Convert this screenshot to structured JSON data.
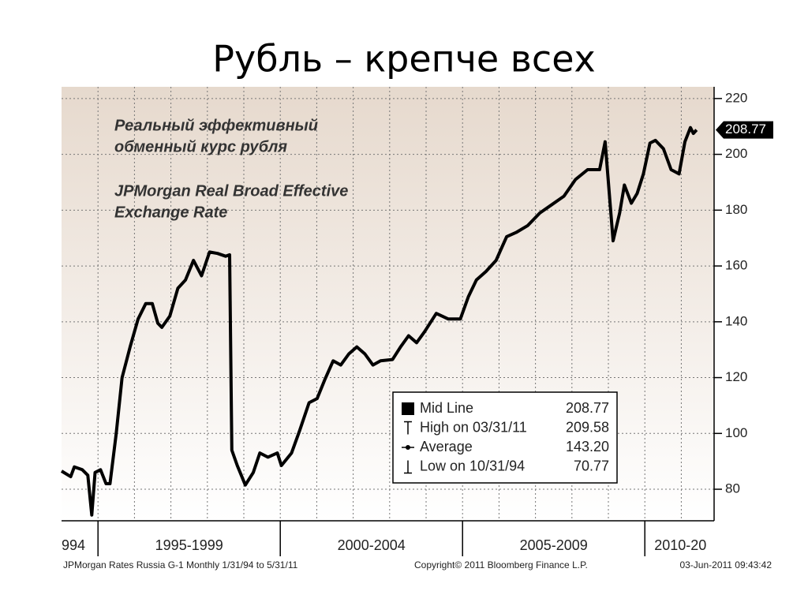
{
  "slide_title": "Рубль – крепче всех",
  "chart_data": {
    "type": "line",
    "title_lines": [
      "Реальный эффективный",
      "обменный курс рубля",
      "JPMorgan Real Broad Effective",
      "Exchange Rate"
    ],
    "x": [
      1994.0,
      1994.25,
      1994.35,
      1994.57,
      1994.72,
      1994.83,
      1994.92,
      1995.07,
      1995.22,
      1995.33,
      1995.5,
      1995.66,
      1995.88,
      1996.1,
      1996.31,
      1996.49,
      1996.64,
      1996.75,
      1996.97,
      1997.19,
      1997.4,
      1997.62,
      1997.84,
      1998.06,
      1998.28,
      1998.5,
      1998.61,
      1998.67,
      1998.82,
      1999.04,
      1999.26,
      1999.44,
      1999.66,
      1999.92,
      2000.03,
      2000.31,
      2000.53,
      2000.79,
      2001.01,
      2001.23,
      2001.45,
      2001.66,
      2001.88,
      2002.1,
      2002.32,
      2002.54,
      2002.75,
      2003.08,
      2003.3,
      2003.52,
      2003.74,
      2003.96,
      2004.28,
      2004.61,
      2004.94,
      2005.16,
      2005.38,
      2005.64,
      2005.92,
      2006.21,
      2006.47,
      2006.79,
      2007.12,
      2007.45,
      2007.78,
      2008.1,
      2008.43,
      2008.76,
      2008.91,
      2009.13,
      2009.31,
      2009.44,
      2009.63,
      2009.79,
      2009.96,
      2010.14,
      2010.29,
      2010.51,
      2010.72,
      2010.94,
      2011.1,
      2011.25,
      2011.33,
      2011.42
    ],
    "series": [
      {
        "name": "Mid Line",
        "color": "#000000",
        "values": [
          86.5,
          84.5,
          88,
          87,
          85,
          70.77,
          86,
          87,
          82,
          82,
          100,
          120,
          131,
          141,
          146.5,
          146.5,
          139.5,
          138,
          142,
          152,
          155,
          162,
          156.5,
          165,
          164.5,
          163.5,
          164,
          94,
          88.5,
          81.5,
          86,
          93,
          91.5,
          93,
          88.5,
          93,
          101,
          111,
          112.5,
          119.5,
          126,
          124.5,
          128.5,
          131,
          128.5,
          124.5,
          126,
          126.5,
          131,
          135,
          132.5,
          136.5,
          143,
          141,
          141,
          149,
          155,
          158,
          162,
          170.5,
          172,
          174.5,
          179,
          182,
          185,
          191,
          194.5,
          194.5,
          204.5,
          169,
          179,
          189,
          182.5,
          186,
          193,
          204,
          205,
          202,
          194.5,
          193,
          204.5,
          209.58,
          207.5,
          208.77
        ]
      }
    ],
    "xlim": [
      1994,
      2011.9
    ],
    "ylim": [
      68.7,
      224.2
    ],
    "yticks": [
      80,
      100,
      120,
      140,
      160,
      180,
      200,
      220
    ],
    "xgrid": [
      1995,
      1996,
      1997,
      1998,
      1999,
      2000,
      2001,
      2002,
      2003,
      2004,
      2005,
      2006,
      2007,
      2008,
      2009,
      2010,
      2011
    ],
    "xperiod_bounds": [
      1995,
      2000,
      2005,
      2010
    ],
    "xperiod_labels": [
      "994",
      "1995-1999",
      "2000-2004",
      "2005-2009",
      "2010-20"
    ],
    "grid": true,
    "legend_rows": [
      {
        "label": "Mid Line",
        "value": "208.77"
      },
      {
        "label": "High on 03/31/11",
        "value": "209.58"
      },
      {
        "label": "Average",
        "value": "143.20"
      },
      {
        "label": "Low on 10/31/94",
        "value": "70.77"
      }
    ],
    "footer": [
      "JPMorgan Rates  Russia     G-1   Monthly  1/31/94 to 5/31/11",
      "Copyright© 2011 Bloomberg Finance L.P.",
      "03-Jun-2011 09:43:42"
    ]
  }
}
